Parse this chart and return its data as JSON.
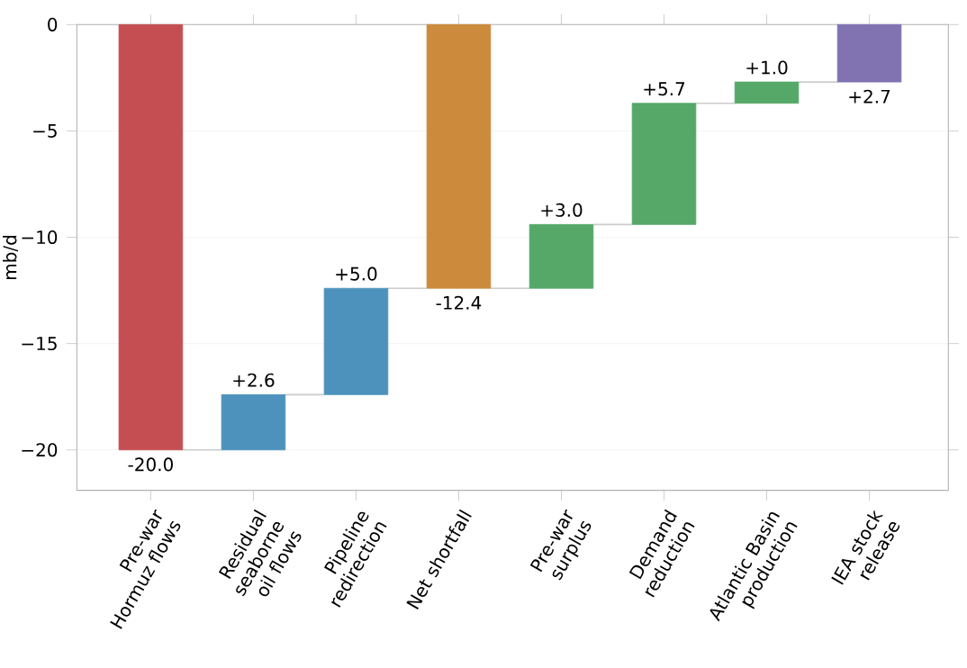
{
  "chart_data": {
    "type": "bar",
    "ylabel": "mb/d",
    "categories": [
      "Pre-war Hormuz flows",
      "Residual seaborne oil flows",
      "Pipeline redirection",
      "Net shortfall",
      "Pre-war surplus",
      "Demand reduction",
      "Atlantic Basin production",
      "IEA stock release"
    ],
    "values": [
      -20.0,
      2.6,
      5.0,
      -12.4,
      3.0,
      5.7,
      1.0,
      2.7
    ],
    "base": [
      0,
      -20.0,
      -17.4,
      0,
      -12.4,
      -9.4,
      -3.7,
      -2.7
    ],
    "colors": [
      "#c44e52",
      "#4c92bd",
      "#4c92bd",
      "#cc8a3c",
      "#55a868",
      "#55a868",
      "#55a868",
      "#8172b2"
    ],
    "value_labels": [
      "-20.0",
      "+2.6",
      "+5.0",
      "-12.4",
      "+3.0",
      "+5.7",
      "+1.0",
      "+2.7"
    ],
    "ylim": [
      -21.9,
      0
    ],
    "yticks": [
      {
        "value": 0,
        "label": "0"
      },
      {
        "value": -5,
        "label": "−5"
      },
      {
        "value": -10,
        "label": "−10"
      },
      {
        "value": -15,
        "label": "−15"
      },
      {
        "value": -20,
        "label": "−20"
      }
    ],
    "grid": "y"
  }
}
